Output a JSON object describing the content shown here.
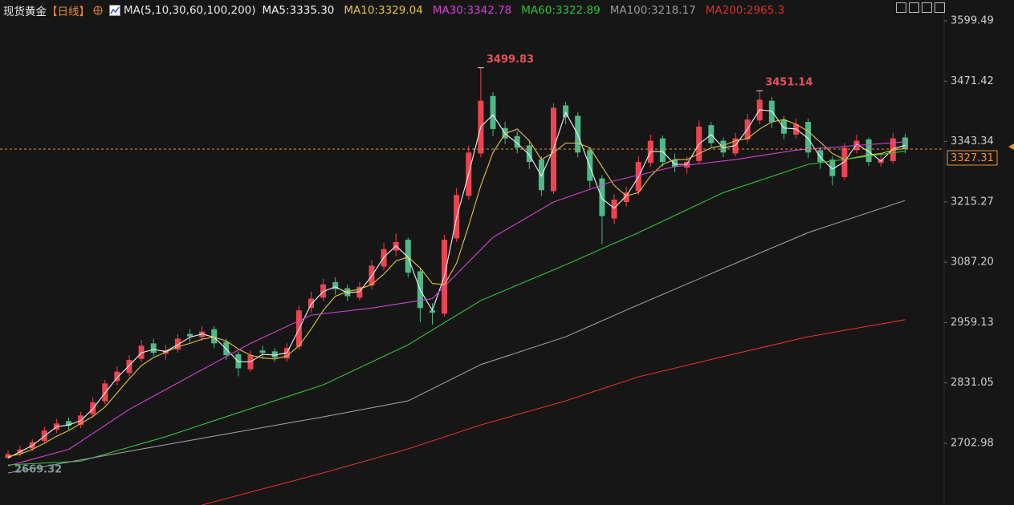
{
  "chart_data": {
    "type": "candlestick",
    "header": {
      "name": "现货黄金",
      "period": "【日线】",
      "ma_params": "MA(5,10,30,60,100,200)"
    },
    "ylim": [
      2572.0,
      3643.7
    ],
    "yticks": [
      3599.49,
      3471.42,
      3343.34,
      3215.27,
      {
        "value": 3087.2,
        "label": "3087.20"
      },
      2959.13,
      2831.05,
      2702.98
    ],
    "up_color": "#ee4452",
    "down_color": "#4fb889",
    "last_price": 3327.31,
    "last_price_color": "#f0922d",
    "annotations": [
      {
        "field": "high",
        "index": 39,
        "color": "#e8505a"
      },
      {
        "field": "high",
        "index": 62,
        "color": "#e8505a"
      },
      {
        "field": "low",
        "index": 0,
        "color": "#7f9a9a"
      }
    ],
    "open": [
      2672,
      2682,
      2692,
      2708,
      2732,
      2750,
      2742,
      2765,
      2792,
      2835,
      2852,
      2882,
      2915,
      2893,
      2902,
      2935,
      2928,
      2945,
      2918,
      2892,
      2860,
      2900,
      2898,
      2883,
      2908,
      2990,
      3012,
      3045,
      3032,
      3012,
      3038,
      3078,
      3112,
      3135,
      3068,
      2985,
      2978,
      3138,
      3228,
      3318,
      3440,
      3372,
      3355,
      3335,
      3305,
      3238,
      3420,
      3398,
      3325,
      3265,
      3180,
      3215,
      3238,
      3298,
      3350,
      3305,
      3288,
      3302,
      3378,
      3345,
      3318,
      3348,
      3388,
      3430,
      3390,
      3358,
      3385,
      3325,
      3305,
      3268,
      3325,
      3348,
      3298,
      3302,
      3352
    ],
    "high": [
      2688,
      2698,
      2712,
      2738,
      2755,
      2758,
      2770,
      2800,
      2838,
      2866,
      2890,
      2922,
      2925,
      2912,
      2935,
      2945,
      2952,
      2952,
      2925,
      2898,
      2900,
      2910,
      2905,
      2915,
      2995,
      3025,
      3052,
      3055,
      3040,
      3045,
      3092,
      3128,
      3148,
      3140,
      3075,
      3000,
      3145,
      3245,
      3335,
      3499.83,
      3448,
      3385,
      3365,
      3345,
      3312,
      3425,
      3428,
      3405,
      3332,
      3272,
      3232,
      3248,
      3312,
      3358,
      3356,
      3318,
      3312,
      3388,
      3385,
      3352,
      3362,
      3402,
      3451.14,
      3438,
      3398,
      3392,
      3392,
      3332,
      3312,
      3340,
      3358,
      3352,
      3318,
      3362,
      3360
    ],
    "low": [
      2669.32,
      2675,
      2686,
      2702,
      2725,
      2732,
      2735,
      2758,
      2786,
      2826,
      2845,
      2875,
      2888,
      2880,
      2895,
      2918,
      2920,
      2905,
      2880,
      2845,
      2855,
      2882,
      2875,
      2876,
      2902,
      2980,
      3005,
      3018,
      3005,
      3006,
      3030,
      3070,
      3100,
      3055,
      2960,
      2955,
      2972,
      3130,
      3220,
      3310,
      3355,
      3338,
      3318,
      3285,
      3228,
      3232,
      3380,
      3310,
      3245,
      3125,
      3168,
      3205,
      3230,
      3290,
      3290,
      3278,
      3275,
      3296,
      3332,
      3310,
      3312,
      3340,
      3380,
      3372,
      3348,
      3350,
      3308,
      3285,
      3250,
      3262,
      3318,
      3292,
      3290,
      3296,
      3318
    ],
    "close": [
      2680,
      2690,
      2705,
      2730,
      2745,
      2740,
      2762,
      2790,
      2830,
      2855,
      2880,
      2910,
      2895,
      2900,
      2925,
      2930,
      2940,
      2915,
      2890,
      2862,
      2890,
      2895,
      2885,
      2905,
      2985,
      3010,
      3040,
      3030,
      3015,
      3035,
      3080,
      3115,
      3130,
      3065,
      2990,
      2980,
      3135,
      3230,
      3320,
      3430,
      3370,
      3350,
      3330,
      3300,
      3240,
      3415,
      3395,
      3320,
      3260,
      3185,
      3220,
      3235,
      3300,
      3345,
      3300,
      3290,
      3300,
      3375,
      3340,
      3320,
      3350,
      3390,
      3432,
      3385,
      3360,
      3380,
      3320,
      3300,
      3270,
      3330,
      3345,
      3300,
      3305,
      3350,
      3327
    ],
    "series": [
      {
        "label": "MA5:3335.30",
        "color": "#f2f2f2",
        "values": [
          2672,
          2685,
          2698,
          2718,
          2738,
          2742,
          2751,
          2776,
          2810,
          2842,
          2868,
          2895,
          2902,
          2898,
          2912,
          2928,
          2935,
          2928,
          2903,
          2876,
          2876,
          2892,
          2890,
          2895,
          2945,
          2998,
          3025,
          3035,
          3022,
          3025,
          3058,
          3098,
          3122,
          3098,
          3028,
          2985,
          3058,
          3182,
          3275,
          3375,
          3400,
          3360,
          3340,
          3315,
          3270,
          3328,
          3405,
          3358,
          3290,
          3222,
          3202,
          3228,
          3268,
          3322,
          3322,
          3295,
          3295,
          3338,
          3358,
          3330,
          3335,
          3370,
          3411,
          3408,
          3372,
          3370,
          3350,
          3310,
          3285,
          3300,
          3338,
          3322,
          3302,
          3328,
          3335.3
        ]
      },
      {
        "label": "MA10:3329.04",
        "color": "#e3c440",
        "values": [
          2675,
          2680,
          2690,
          2703,
          2718,
          2730,
          2745,
          2760,
          2780,
          2810,
          2840,
          2868,
          2885,
          2896,
          2908,
          2915,
          2924,
          2928,
          2920,
          2903,
          2890,
          2884,
          2882,
          2888,
          2910,
          2945,
          2985,
          3015,
          3025,
          3030,
          3040,
          3062,
          3090,
          3098,
          3075,
          3042,
          3040,
          3085,
          3165,
          3250,
          3320,
          3360,
          3370,
          3345,
          3305,
          3320,
          3340,
          3340,
          3330,
          3290,
          3250,
          3228,
          3235,
          3270,
          3295,
          3305,
          3305,
          3318,
          3330,
          3335,
          3345,
          3350,
          3370,
          3385,
          3390,
          3380,
          3365,
          3342,
          3318,
          3305,
          3310,
          3315,
          3318,
          3325,
          3329.04
        ]
      },
      {
        "label": "MA30:3342.78",
        "color": "#d341d3",
        "x": [
          0,
          5,
          10,
          15,
          20,
          25,
          30,
          35,
          40,
          45,
          50,
          55,
          60,
          65,
          70,
          74
        ],
        "values": [
          2655,
          2690,
          2775,
          2845,
          2915,
          2975,
          2990,
          3010,
          3140,
          3215,
          3260,
          3290,
          3305,
          3325,
          3335,
          3342.78
        ]
      },
      {
        "label": "MA60:3322.89",
        "color": "#33c233",
        "x": [
          0,
          6,
          13,
          19,
          26,
          33,
          39,
          46,
          52,
          59,
          66,
          74
        ],
        "values": [
          2657,
          2665,
          2717,
          2768,
          2827,
          2912,
          3006,
          3082,
          3150,
          3235,
          3295,
          3322.89
        ]
      },
      {
        "label": "MA100:3218.17",
        "color": "#9a9a9a",
        "x": [
          0,
          13,
          26,
          33,
          39,
          46,
          52,
          59,
          66,
          74
        ],
        "values": [
          2640,
          2700,
          2759,
          2793,
          2870,
          2929,
          2997,
          3074,
          3150,
          3218.17
        ]
      },
      {
        "label": "MA200:2965.3",
        "color": "#e02e2e",
        "x": [
          16,
          26,
          33,
          39,
          46,
          52,
          59,
          66,
          74
        ],
        "values": [
          2572,
          2640,
          2691,
          2742,
          2793,
          2844,
          2887,
          2929,
          2965.3
        ]
      }
    ]
  }
}
